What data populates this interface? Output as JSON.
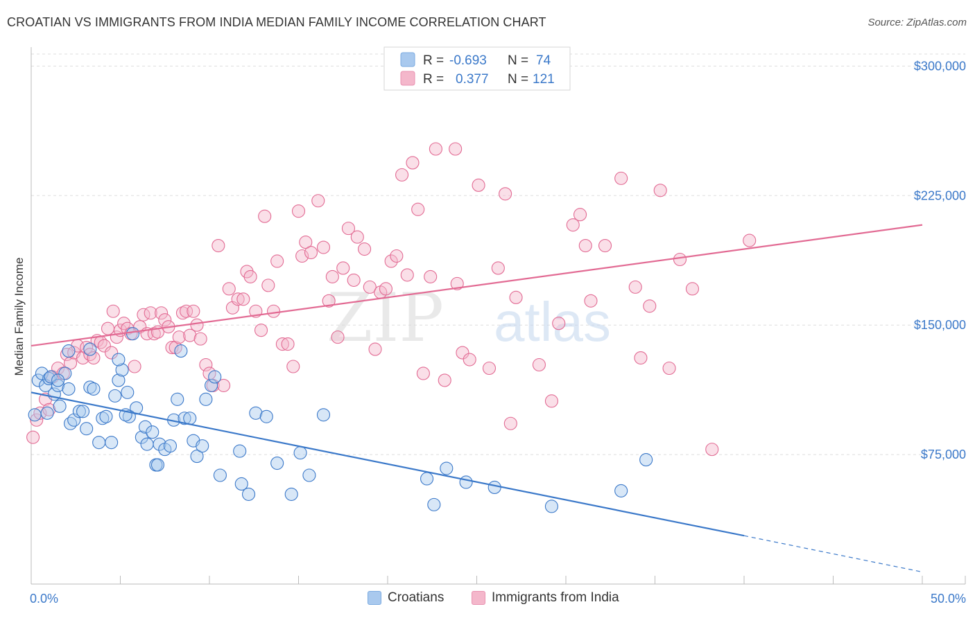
{
  "title": "CROATIAN VS IMMIGRANTS FROM INDIA MEDIAN FAMILY INCOME CORRELATION CHART",
  "source": "Source: ZipAtlas.com",
  "watermark": {
    "zip": "ZIP",
    "atlas": "atlas"
  },
  "colors": {
    "blue": "#3a78c9",
    "blue_fill": "#a9c9ee",
    "pink": "#e26a93",
    "pink_fill": "#f4b7cb",
    "grid": "#dddddd"
  },
  "legend": {
    "rows": [
      {
        "r_label": "R = ",
        "r_value": "-0.693",
        "n_label": "N = ",
        "n_value": "74"
      },
      {
        "r_label": "R = ",
        "r_value": "0.377",
        "n_label": "N = ",
        "n_value": "121"
      }
    ]
  },
  "bottom_legend": {
    "blue": "Croatians",
    "pink": "Immigrants from India"
  },
  "chart_data": {
    "type": "scatter",
    "title": "CROATIAN VS IMMIGRANTS FROM INDIA MEDIAN FAMILY INCOME CORRELATION CHART",
    "xlabel": "",
    "ylabel": "Median Family Income",
    "xlim": [
      0,
      50
    ],
    "ylim": [
      0,
      315000
    ],
    "x_tick_labels": [
      "0.0%",
      "50.0%"
    ],
    "y_ticks": [
      75000,
      150000,
      225000,
      300000
    ],
    "y_tick_labels": [
      "$75,000",
      "$150,000",
      "$225,000",
      "$300,000"
    ],
    "grid": "horizontal dashed",
    "legend_position": "top-center",
    "series": [
      {
        "name": "Croatians",
        "color": "#3a78c9",
        "trend": {
          "x0": 0,
          "y0": 111000,
          "x1": 40,
          "y1": 28000,
          "dashed_to_x": 50,
          "dashed_to_y": 7000
        },
        "points": [
          [
            0.2,
            98000
          ],
          [
            0.4,
            118000
          ],
          [
            0.6,
            122000
          ],
          [
            0.8,
            115000
          ],
          [
            0.9,
            99000
          ],
          [
            1.0,
            119000
          ],
          [
            1.1,
            120000
          ],
          [
            1.3,
            110000
          ],
          [
            1.5,
            115000
          ],
          [
            1.6,
            103000
          ],
          [
            1.9,
            122000
          ],
          [
            2.1,
            113000
          ],
          [
            2.2,
            93000
          ],
          [
            2.4,
            95000
          ],
          [
            2.7,
            100000
          ],
          [
            2.9,
            100000
          ],
          [
            3.1,
            90000
          ],
          [
            3.3,
            114000
          ],
          [
            3.5,
            113000
          ],
          [
            3.8,
            82000
          ],
          [
            4.0,
            96000
          ],
          [
            4.2,
            97000
          ],
          [
            4.5,
            82000
          ],
          [
            4.7,
            109000
          ],
          [
            4.9,
            118000
          ],
          [
            5.1,
            124000
          ],
          [
            5.4,
            111000
          ],
          [
            5.7,
            145000
          ],
          [
            5.9,
            102000
          ],
          [
            5.5,
            97000
          ],
          [
            6.2,
            85000
          ],
          [
            6.4,
            91000
          ],
          [
            6.5,
            81000
          ],
          [
            6.8,
            88000
          ],
          [
            7.0,
            69000
          ],
          [
            7.2,
            81000
          ],
          [
            7.5,
            78000
          ],
          [
            7.8,
            80000
          ],
          [
            8.0,
            95000
          ],
          [
            8.2,
            107000
          ],
          [
            8.4,
            135000
          ],
          [
            8.6,
            96000
          ],
          [
            8.9,
            96000
          ],
          [
            9.1,
            83000
          ],
          [
            9.3,
            74000
          ],
          [
            9.6,
            80000
          ],
          [
            9.8,
            107000
          ],
          [
            10.1,
            115000
          ],
          [
            10.3,
            120000
          ],
          [
            10.6,
            63000
          ],
          [
            11.8,
            58000
          ],
          [
            12.2,
            52000
          ],
          [
            11.7,
            77000
          ],
          [
            12.6,
            99000
          ],
          [
            13.2,
            97000
          ],
          [
            13.8,
            70000
          ],
          [
            14.6,
            52000
          ],
          [
            15.1,
            76000
          ],
          [
            15.6,
            63000
          ],
          [
            16.4,
            98000
          ],
          [
            22.2,
            61000
          ],
          [
            22.6,
            46000
          ],
          [
            23.3,
            67000
          ],
          [
            24.4,
            59000
          ],
          [
            26.0,
            56000
          ],
          [
            29.2,
            45000
          ],
          [
            33.1,
            54000
          ],
          [
            34.5,
            72000
          ],
          [
            2.1,
            135000
          ],
          [
            3.3,
            136000
          ],
          [
            4.9,
            130000
          ],
          [
            1.5,
            118000
          ],
          [
            5.3,
            98000
          ],
          [
            7.1,
            69000
          ]
        ]
      },
      {
        "name": "Immigrants from India",
        "color": "#e26a93",
        "trend": {
          "x0": 0,
          "y0": 138000,
          "x1": 50,
          "y1": 208000
        },
        "points": [
          [
            0.1,
            85000
          ],
          [
            0.3,
            95000
          ],
          [
            0.5,
            99000
          ],
          [
            0.8,
            107000
          ],
          [
            1.0,
            101000
          ],
          [
            1.2,
            120000
          ],
          [
            1.5,
            125000
          ],
          [
            1.8,
            122000
          ],
          [
            2.0,
            133000
          ],
          [
            2.2,
            128000
          ],
          [
            2.4,
            134000
          ],
          [
            2.6,
            138000
          ],
          [
            2.9,
            131000
          ],
          [
            3.1,
            137000
          ],
          [
            3.3,
            133000
          ],
          [
            3.5,
            131000
          ],
          [
            3.7,
            141000
          ],
          [
            3.9,
            140000
          ],
          [
            4.1,
            138000
          ],
          [
            4.3,
            148000
          ],
          [
            4.5,
            134000
          ],
          [
            4.6,
            158000
          ],
          [
            4.8,
            143000
          ],
          [
            5.0,
            147000
          ],
          [
            5.2,
            151000
          ],
          [
            5.4,
            148000
          ],
          [
            5.6,
            145000
          ],
          [
            5.8,
            126000
          ],
          [
            6.1,
            149000
          ],
          [
            6.3,
            156000
          ],
          [
            6.5,
            145000
          ],
          [
            6.7,
            157000
          ],
          [
            6.9,
            145000
          ],
          [
            7.1,
            146000
          ],
          [
            7.3,
            157000
          ],
          [
            7.5,
            153000
          ],
          [
            7.7,
            149000
          ],
          [
            7.9,
            137000
          ],
          [
            8.1,
            137000
          ],
          [
            8.3,
            143000
          ],
          [
            8.5,
            157000
          ],
          [
            8.7,
            158000
          ],
          [
            8.9,
            144000
          ],
          [
            9.1,
            158000
          ],
          [
            9.3,
            150000
          ],
          [
            9.5,
            142000
          ],
          [
            9.8,
            127000
          ],
          [
            10.0,
            122000
          ],
          [
            10.2,
            115000
          ],
          [
            10.5,
            196000
          ],
          [
            10.8,
            115000
          ],
          [
            11.1,
            171000
          ],
          [
            11.3,
            160000
          ],
          [
            11.6,
            165000
          ],
          [
            11.9,
            165000
          ],
          [
            12.1,
            181000
          ],
          [
            12.3,
            178000
          ],
          [
            12.6,
            158000
          ],
          [
            12.9,
            147000
          ],
          [
            13.1,
            213000
          ],
          [
            13.3,
            173000
          ],
          [
            13.6,
            158000
          ],
          [
            13.8,
            187000
          ],
          [
            14.1,
            139000
          ],
          [
            14.4,
            139000
          ],
          [
            14.7,
            126000
          ],
          [
            15.0,
            216000
          ],
          [
            15.2,
            190000
          ],
          [
            15.4,
            198000
          ],
          [
            15.7,
            192000
          ],
          [
            16.1,
            222000
          ],
          [
            16.4,
            195000
          ],
          [
            16.7,
            164000
          ],
          [
            16.9,
            178000
          ],
          [
            17.2,
            143000
          ],
          [
            17.5,
            183000
          ],
          [
            17.8,
            206000
          ],
          [
            18.1,
            176000
          ],
          [
            18.3,
            201000
          ],
          [
            18.7,
            194000
          ],
          [
            19.0,
            172000
          ],
          [
            19.3,
            136000
          ],
          [
            19.6,
            169000
          ],
          [
            19.9,
            171000
          ],
          [
            20.2,
            187000
          ],
          [
            20.5,
            190000
          ],
          [
            20.8,
            237000
          ],
          [
            21.1,
            179000
          ],
          [
            21.4,
            244000
          ],
          [
            21.7,
            217000
          ],
          [
            22.0,
            122000
          ],
          [
            22.4,
            178000
          ],
          [
            22.7,
            252000
          ],
          [
            23.2,
            118000
          ],
          [
            23.8,
            252000
          ],
          [
            23.9,
            174000
          ],
          [
            24.2,
            134000
          ],
          [
            24.6,
            130000
          ],
          [
            25.1,
            231000
          ],
          [
            25.7,
            125000
          ],
          [
            26.2,
            183000
          ],
          [
            26.6,
            226000
          ],
          [
            26.9,
            93000
          ],
          [
            27.2,
            166000
          ],
          [
            28.5,
            127000
          ],
          [
            29.2,
            106000
          ],
          [
            29.6,
            151000
          ],
          [
            30.4,
            208000
          ],
          [
            30.8,
            214000
          ],
          [
            31.1,
            196000
          ],
          [
            31.4,
            164000
          ],
          [
            32.2,
            196000
          ],
          [
            33.1,
            235000
          ],
          [
            33.9,
            172000
          ],
          [
            34.2,
            131000
          ],
          [
            34.7,
            161000
          ],
          [
            35.3,
            228000
          ],
          [
            35.8,
            125000
          ],
          [
            36.4,
            188000
          ],
          [
            37.1,
            171000
          ],
          [
            38.2,
            78000
          ],
          [
            40.3,
            199000
          ]
        ]
      }
    ]
  }
}
